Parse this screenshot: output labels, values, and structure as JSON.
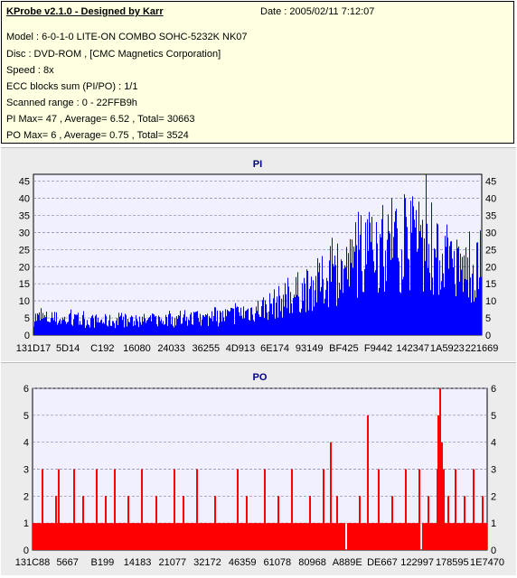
{
  "header": {
    "title": "KProbe v2.1.0 - Designed by Karr",
    "date": "Date : 2005/02/11 7:12:07",
    "lines": [
      "Model : 6-0-1-0 LITE-ON COMBO SOHC-5232K NK07",
      "Disc : DVD-ROM ,  [CMC Magnetics Corporation]",
      "Speed : 8x",
      "ECC blocks sum (PI/PO) : 1/1",
      "Scanned range : 0 - 22FFB9h",
      "PI Max= 47 , Average= 6.52 , Total= 30663",
      "PO Max= 6 , Average= 0.75 , Total= 3524"
    ]
  },
  "colors": {
    "pi": "#0000ff",
    "po": "#ff0000",
    "plot_bg": "#f0f0ff",
    "grid": "#8080a0"
  },
  "chart_data": [
    {
      "type": "bar",
      "title": "PI",
      "ylim": [
        0,
        47
      ],
      "yticks": [
        0,
        5,
        10,
        15,
        20,
        25,
        30,
        35,
        40,
        45
      ],
      "xtick_labels": [
        "131D17",
        "5D14",
        "C192",
        "16080",
        "24033",
        "36255",
        "4D913",
        "6E174",
        "93149",
        "BF425",
        "F9442",
        "142347",
        "1A5923",
        "221669"
      ],
      "grid": true,
      "profile": [
        [
          0,
          5.5
        ],
        [
          0.1,
          4.5
        ],
        [
          0.2,
          4.3
        ],
        [
          0.3,
          4.8
        ],
        [
          0.4,
          5.2
        ],
        [
          0.45,
          6.5
        ],
        [
          0.5,
          8.0
        ],
        [
          0.55,
          10.5
        ],
        [
          0.6,
          14.0
        ],
        [
          0.65,
          17.0
        ],
        [
          0.7,
          20.5
        ],
        [
          0.75,
          25.0
        ],
        [
          0.8,
          27.0
        ],
        [
          0.85,
          27.5
        ],
        [
          0.9,
          24.0
        ],
        [
          0.95,
          20.5
        ],
        [
          1.0,
          20.0
        ]
      ],
      "peaks": [
        [
          0.72,
          33
        ],
        [
          0.75,
          36
        ],
        [
          0.78,
          38
        ],
        [
          0.8,
          40
        ],
        [
          0.83,
          40
        ],
        [
          0.86,
          39
        ],
        [
          0.877,
          47
        ],
        [
          0.92,
          29
        ],
        [
          0.99,
          27
        ]
      ]
    },
    {
      "type": "bar",
      "title": "PO",
      "ylim": [
        0,
        6
      ],
      "yticks": [
        0,
        1,
        2,
        3,
        4,
        5,
        6
      ],
      "xtick_labels": [
        "131C88",
        "5667",
        "B199",
        "14183",
        "21077",
        "32172",
        "46359",
        "61078",
        "80968",
        "A889E",
        "DE667",
        "122997",
        "178595",
        "1E7470"
      ],
      "grid": true,
      "baseline": 1,
      "spikes": [
        [
          0.02,
          3
        ],
        [
          0.05,
          2
        ],
        [
          0.055,
          3
        ],
        [
          0.09,
          3
        ],
        [
          0.11,
          2
        ],
        [
          0.14,
          3
        ],
        [
          0.16,
          2
        ],
        [
          0.18,
          3
        ],
        [
          0.21,
          2
        ],
        [
          0.24,
          3
        ],
        [
          0.27,
          2
        ],
        [
          0.31,
          3
        ],
        [
          0.33,
          2
        ],
        [
          0.36,
          3
        ],
        [
          0.4,
          2
        ],
        [
          0.45,
          3
        ],
        [
          0.47,
          2
        ],
        [
          0.51,
          3
        ],
        [
          0.54,
          2
        ],
        [
          0.57,
          3
        ],
        [
          0.61,
          2
        ],
        [
          0.64,
          3
        ],
        [
          0.655,
          4
        ],
        [
          0.67,
          2
        ],
        [
          0.72,
          2
        ],
        [
          0.738,
          5
        ],
        [
          0.76,
          3
        ],
        [
          0.79,
          2
        ],
        [
          0.82,
          3
        ],
        [
          0.85,
          3
        ],
        [
          0.87,
          2
        ],
        [
          0.89,
          3
        ],
        [
          0.893,
          5
        ],
        [
          0.897,
          6
        ],
        [
          0.9,
          4
        ],
        [
          0.905,
          3
        ],
        [
          0.915,
          2
        ],
        [
          0.93,
          3
        ],
        [
          0.95,
          2
        ],
        [
          0.97,
          3
        ],
        [
          0.99,
          2
        ]
      ],
      "dips": [
        0.69,
        0.855
      ]
    }
  ]
}
